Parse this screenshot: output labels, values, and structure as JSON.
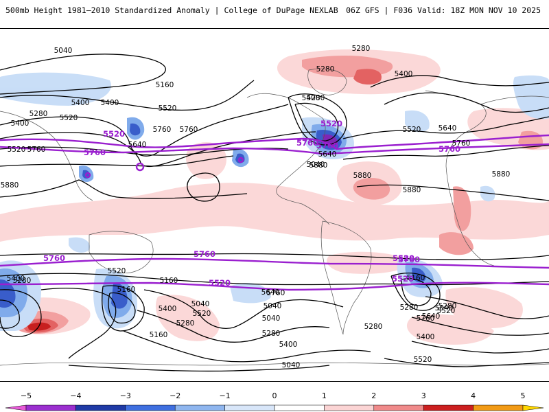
{
  "header": {
    "title": "500mb Height 1981–2010 Standardized Anomaly | College of DuPage NEXLAB",
    "run_info": "06Z GFS | F036 Valid: 18Z MON NOV 10 2025"
  },
  "map": {
    "field": "500mb height contours (dam*10) with standardized anomaly shading",
    "black_contour_labels": [
      "5040",
      "5280",
      "5160",
      "5400",
      "5520",
      "5280",
      "5400",
      "5280",
      "5640",
      "5760",
      "5520",
      "5400",
      "5280",
      "5400",
      "5400",
      "5520",
      "5640",
      "5760",
      "5880",
      "5880",
      "5880",
      "5880",
      "5880",
      "5760",
      "5760",
      "5640",
      "5520",
      "5400",
      "5280",
      "5160",
      "5040",
      "5040",
      "5280",
      "5160",
      "5040",
      "5520",
      "5640",
      "5400",
      "5280",
      "5160",
      "5040",
      "5400",
      "5280",
      "5520",
      "5640",
      "5760",
      "5520",
      "5400",
      "5280",
      "5160",
      "5040",
      "5280",
      "5040",
      "5520",
      "5760"
    ],
    "purple_contour_labels": [
      "5520",
      "5760",
      "5520",
      "5760",
      "5760",
      "5760",
      "5520",
      "5760",
      "5520",
      "5520",
      "5760",
      "5760"
    ],
    "colors": {
      "purple_contour": "#9a1fcf",
      "black_contour": "#000000",
      "neg1": "#c6dcf7",
      "neg2": "#7aa7ea",
      "neg3": "#2f55c8",
      "neg4": "#7a1bb0",
      "neg5": "#e05ad6",
      "pos1": "#fbd6d6",
      "pos2": "#f29a9a",
      "pos3": "#e25a5a",
      "pos4": "#c51414",
      "pos5": "#f59a1a"
    }
  },
  "colorbar": {
    "ticks": [
      "−5",
      "−4",
      "−3",
      "−2",
      "−1",
      "0",
      "1",
      "2",
      "3",
      "4",
      "5"
    ],
    "segments": [
      {
        "from": -5,
        "to": -4,
        "color": "#9b2fcf"
      },
      {
        "from": -4,
        "to": -3,
        "color": "#1f3aa6"
      },
      {
        "from": -3,
        "to": -2,
        "color": "#3f6fe0"
      },
      {
        "from": -2,
        "to": -1,
        "color": "#8fb6ef"
      },
      {
        "from": -1,
        "to": 0,
        "color": "#d8e6f9"
      },
      {
        "from": 0,
        "to": 1,
        "color": "#ffffff"
      },
      {
        "from": 1,
        "to": 2,
        "color": "#fbd4d4"
      },
      {
        "from": 2,
        "to": 3,
        "color": "#f08a8a"
      },
      {
        "from": 3,
        "to": 4,
        "color": "#cc1f1f"
      },
      {
        "from": 4,
        "to": 5,
        "color": "#f29b16"
      }
    ],
    "end_colors": {
      "left": "#e75ad7",
      "right": "#ffd700"
    }
  }
}
